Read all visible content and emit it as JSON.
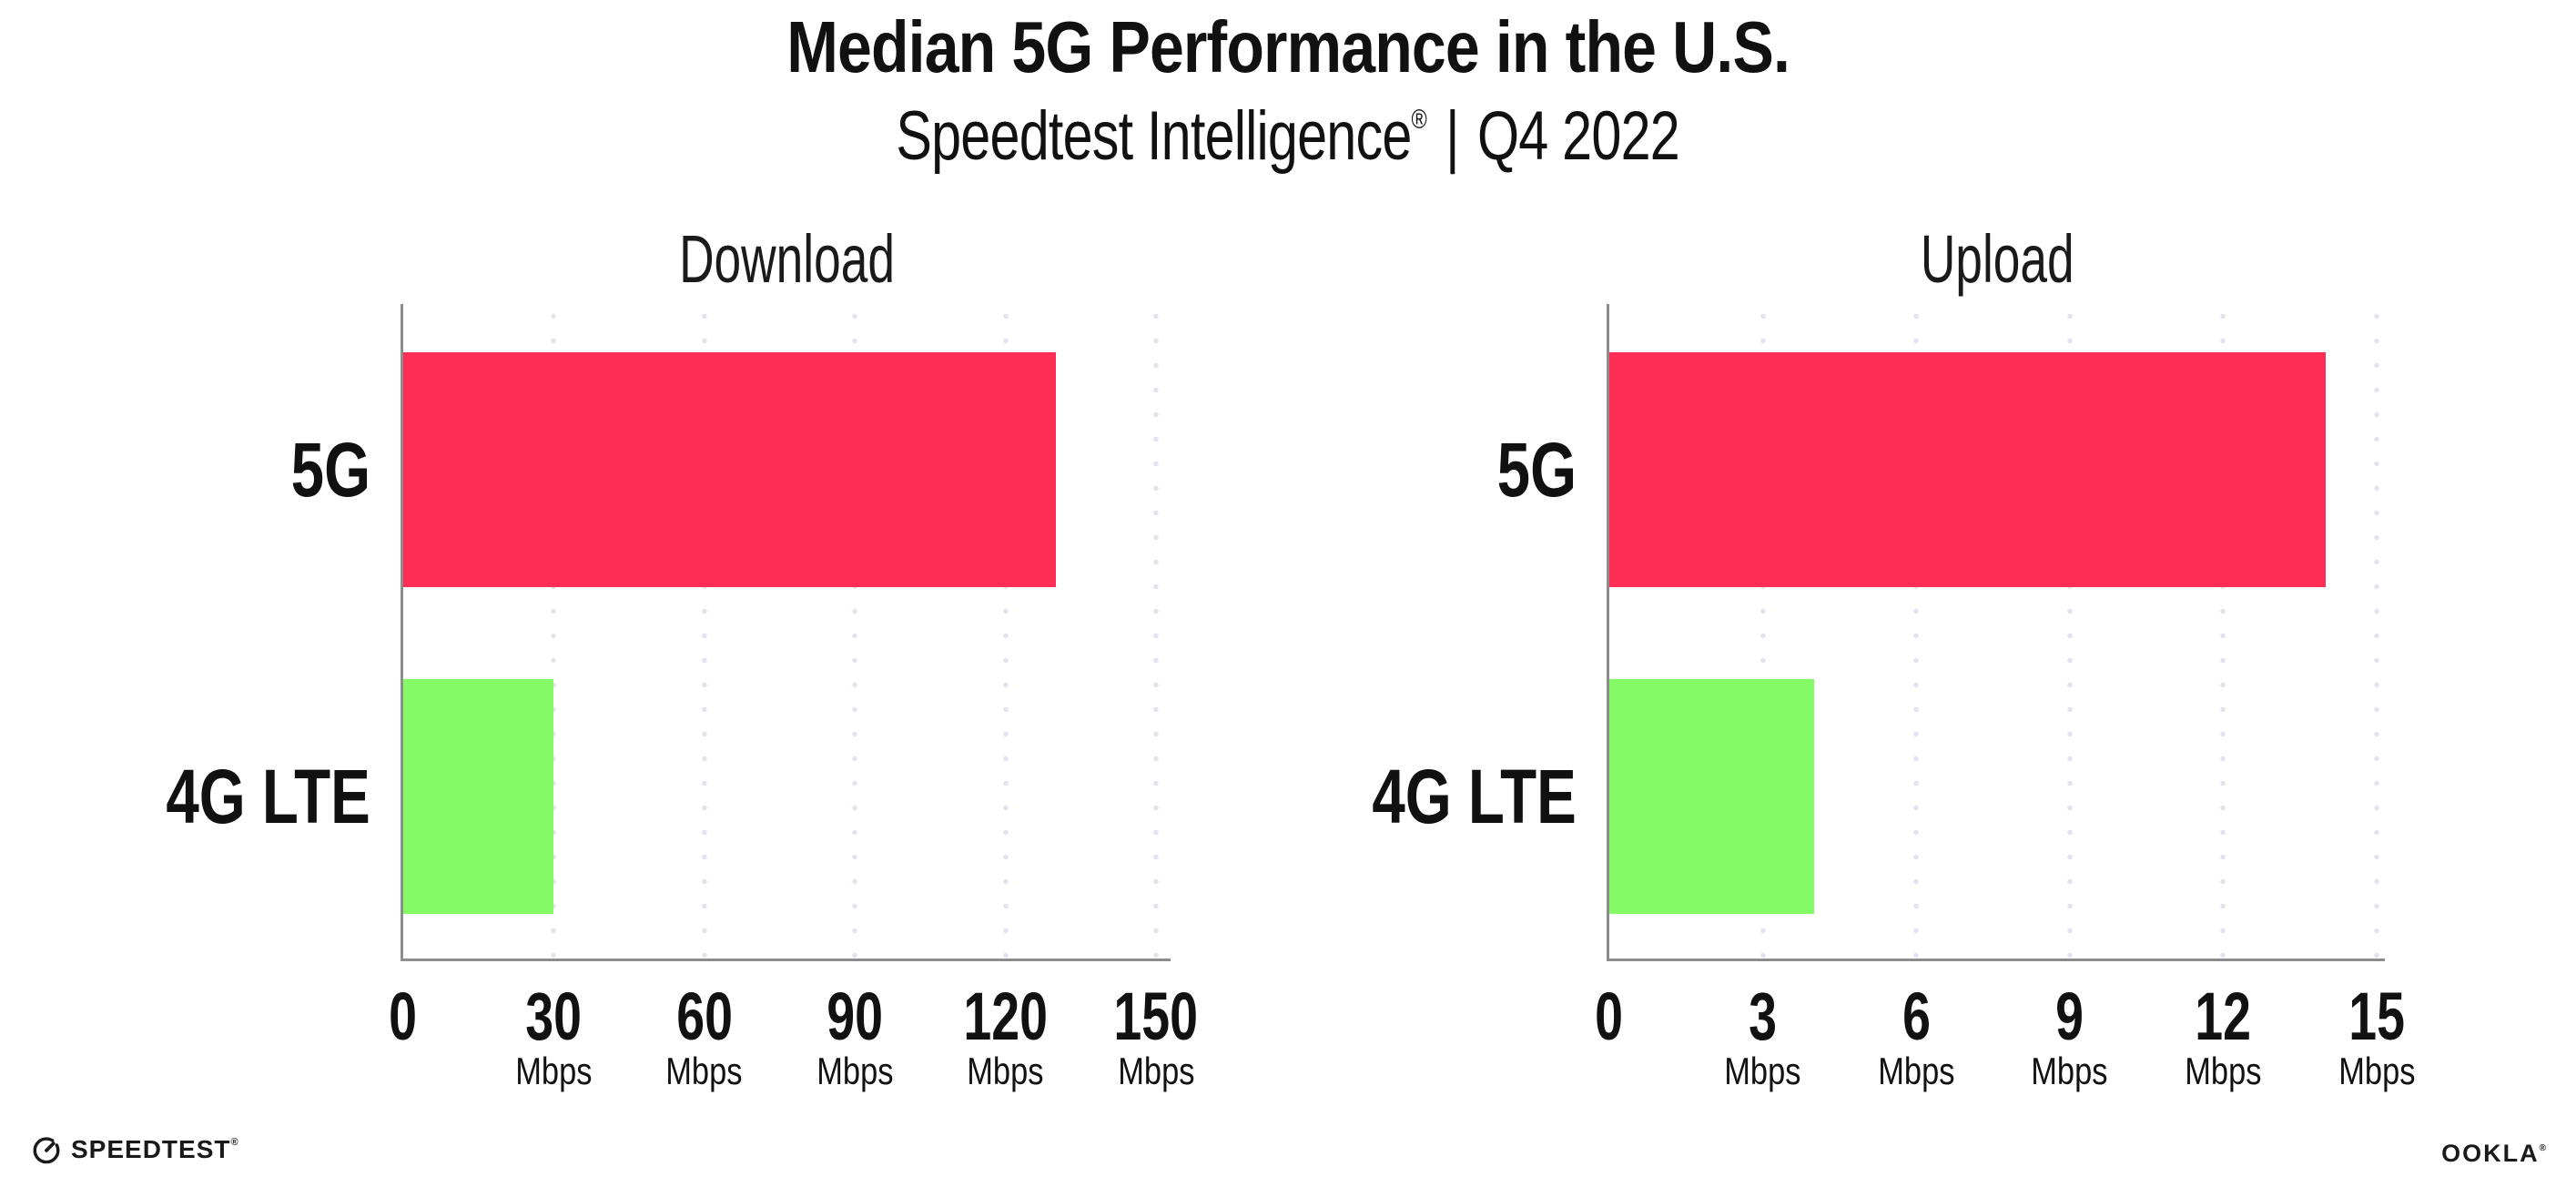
{
  "header": {
    "title": "Median 5G Performance in the U.S.",
    "subtitle": {
      "brand": "Speedtest Intelligence",
      "registered": "®",
      "separator": "|",
      "period": "Q4 2022"
    }
  },
  "chart_data": [
    {
      "type": "bar",
      "orientation": "horizontal",
      "title": "Download",
      "categories": [
        "5G",
        "4G LTE"
      ],
      "values": [
        130,
        30
      ],
      "unit": "Mbps",
      "xlim": [
        0,
        150
      ],
      "xticks": [
        0,
        30,
        60,
        90,
        120,
        150
      ],
      "grid": "dotted-vertical",
      "legend": "none",
      "bar_colors": [
        "#FE2D55",
        "#84FB66"
      ]
    },
    {
      "type": "bar",
      "orientation": "horizontal",
      "title": "Upload",
      "categories": [
        "5G",
        "4G LTE"
      ],
      "values": [
        14,
        4
      ],
      "unit": "Mbps",
      "xlim": [
        0,
        15
      ],
      "xticks": [
        0,
        3,
        6,
        9,
        12,
        15
      ],
      "grid": "dotted-vertical",
      "legend": "none",
      "bar_colors": [
        "#FE2D55",
        "#84FB66"
      ]
    }
  ],
  "colors": {
    "bar_5g": "#FE2D55",
    "bar_4g_lte": "#84FB66",
    "axis": "#8D8D8D",
    "gridline": "#E3E3EF",
    "text": "#111111",
    "background": "#FFFFFF"
  },
  "footer": {
    "speedtest": {
      "icon": "speedtest-gauge-icon",
      "label": "SPEEDTEST",
      "mark": "®"
    },
    "ookla": {
      "label": "OOKLA",
      "mark": "®"
    }
  }
}
